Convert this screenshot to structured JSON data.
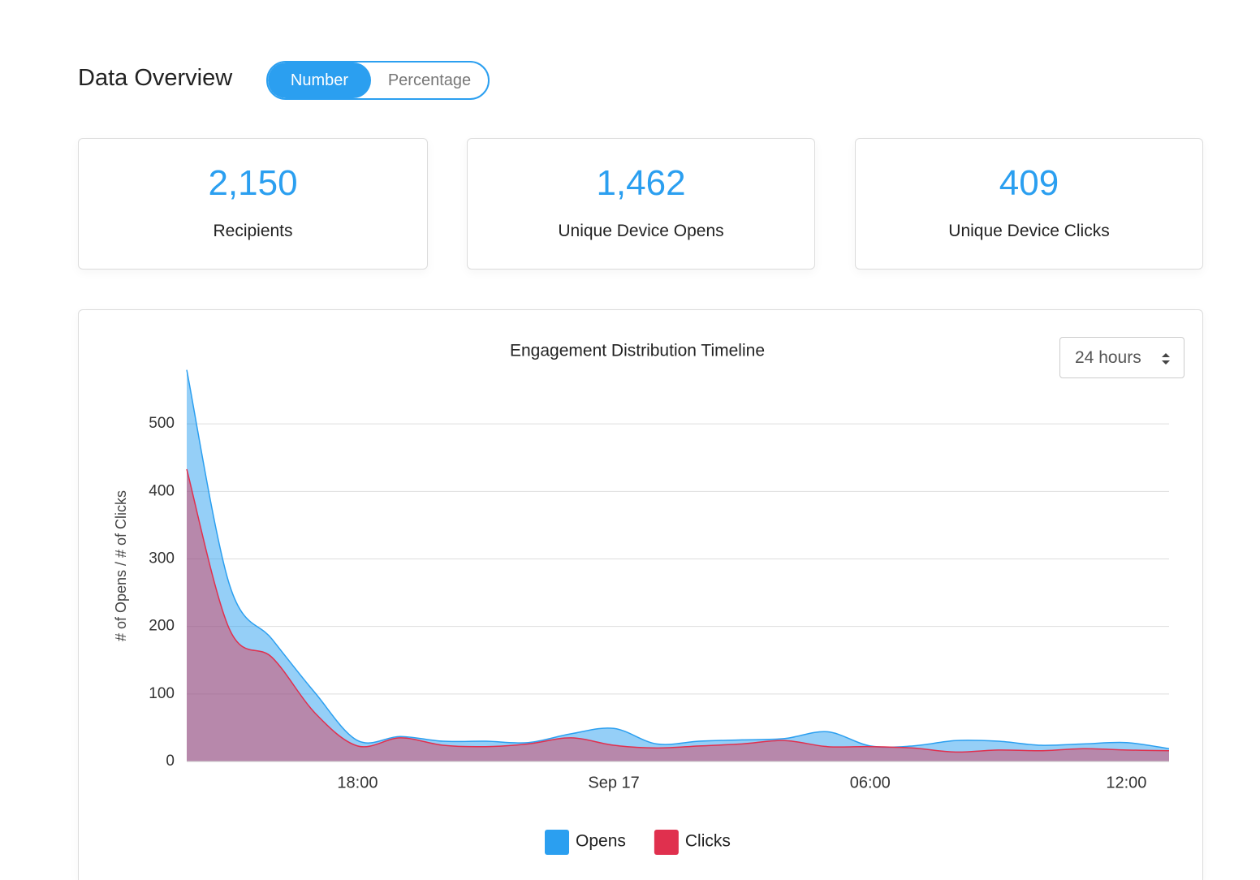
{
  "header": {
    "title": "Data Overview",
    "toggle": {
      "options": [
        "Number",
        "Percentage"
      ],
      "active": 0
    }
  },
  "stats": [
    {
      "value": "2,150",
      "label": "Recipients"
    },
    {
      "value": "1,462",
      "label": "Unique Device Opens"
    },
    {
      "value": "409",
      "label": "Unique Device Clicks"
    }
  ],
  "range_select": "24 hours",
  "chart_data": {
    "type": "area",
    "title": "Engagement Distribution Timeline",
    "y_label": "# of Opens / # of Clicks",
    "categories": [
      null,
      null,
      null,
      null,
      "18:00",
      null,
      null,
      null,
      null,
      null,
      "Sep 17",
      null,
      null,
      null,
      null,
      null,
      "06:00",
      null,
      null,
      null,
      null,
      null,
      "12:00",
      null
    ],
    "series": [
      {
        "name": "Opens",
        "color": "#2b9ff0",
        "values": [
          580,
          262,
          181,
          102,
          31,
          37,
          30,
          30,
          28,
          41,
          49,
          26,
          30,
          32,
          34,
          44,
          23,
          23,
          31,
          30,
          24,
          26,
          28,
          19
        ]
      },
      {
        "name": "Clicks",
        "color": "#e0304e",
        "values": [
          433,
          196,
          154,
          72,
          23,
          35,
          24,
          22,
          26,
          35,
          24,
          20,
          23,
          26,
          31,
          22,
          22,
          20,
          14,
          17,
          16,
          19,
          17,
          16
        ]
      }
    ],
    "ylim": [
      0,
      600
    ],
    "yticks": [
      0,
      100,
      200,
      300,
      400,
      500
    ],
    "grid": true
  }
}
